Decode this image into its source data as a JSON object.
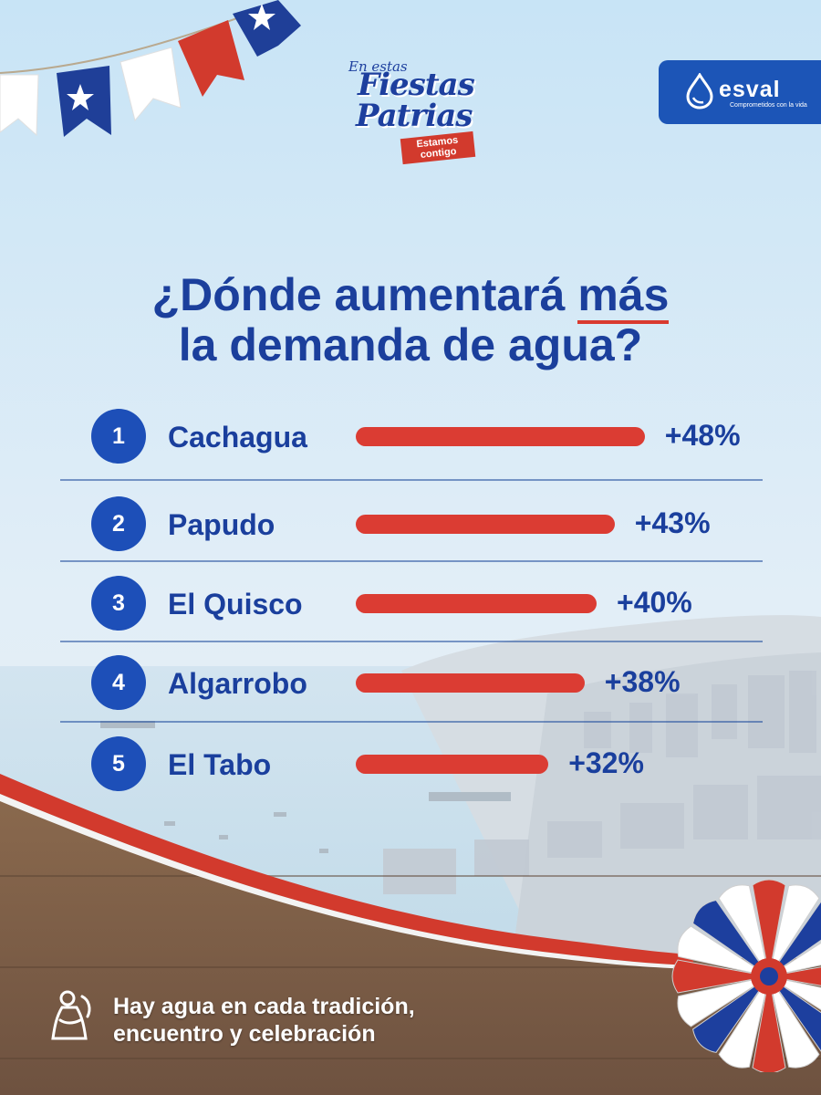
{
  "header": {
    "campaign_logo": {
      "small_text": "En estas",
      "line1": "Fiestas",
      "line2": "Patrias",
      "ribbon": "Estamos contigo",
      "icon": "fiestas-patrias-logo"
    },
    "brand": {
      "name": "esval",
      "tagline": "Comprometidos con la vida",
      "icon": "water-drop-icon",
      "color": "#1c55b7"
    }
  },
  "title": {
    "line1_before": "¿Dónde aumentará ",
    "line1_highlight": "más",
    "line2": "la demanda de agua?"
  },
  "chart_data": {
    "type": "bar",
    "orientation": "horizontal",
    "title": "¿Dónde aumentará más la demanda de agua?",
    "categories": [
      "Cachagua",
      "Papudo",
      "El Quisco",
      "Algarrobo",
      "El Tabo"
    ],
    "ranks": [
      "1",
      "2",
      "3",
      "4",
      "5"
    ],
    "values": [
      48,
      43,
      40,
      38,
      32
    ],
    "value_labels": [
      "+48%",
      "+43%",
      "+40%",
      "+38%",
      "+32%"
    ],
    "unit": "%",
    "bar_color": "#db3c33",
    "badge_color": "#1d4fb8",
    "text_color": "#1a3f9d"
  },
  "footer": {
    "line1": "Hay agua en cada tradición,",
    "line2": "encuentro y celebración",
    "icon": "chilean-dress-icon"
  },
  "decor": {
    "bunting_icon": "chilean-flag-bunting",
    "rosette_icon": "chilean-flag-rosette",
    "colors": {
      "red": "#d23a2d",
      "blue": "#1d3f9e",
      "white": "#ffffff",
      "wood": "#8d6a4d"
    }
  }
}
